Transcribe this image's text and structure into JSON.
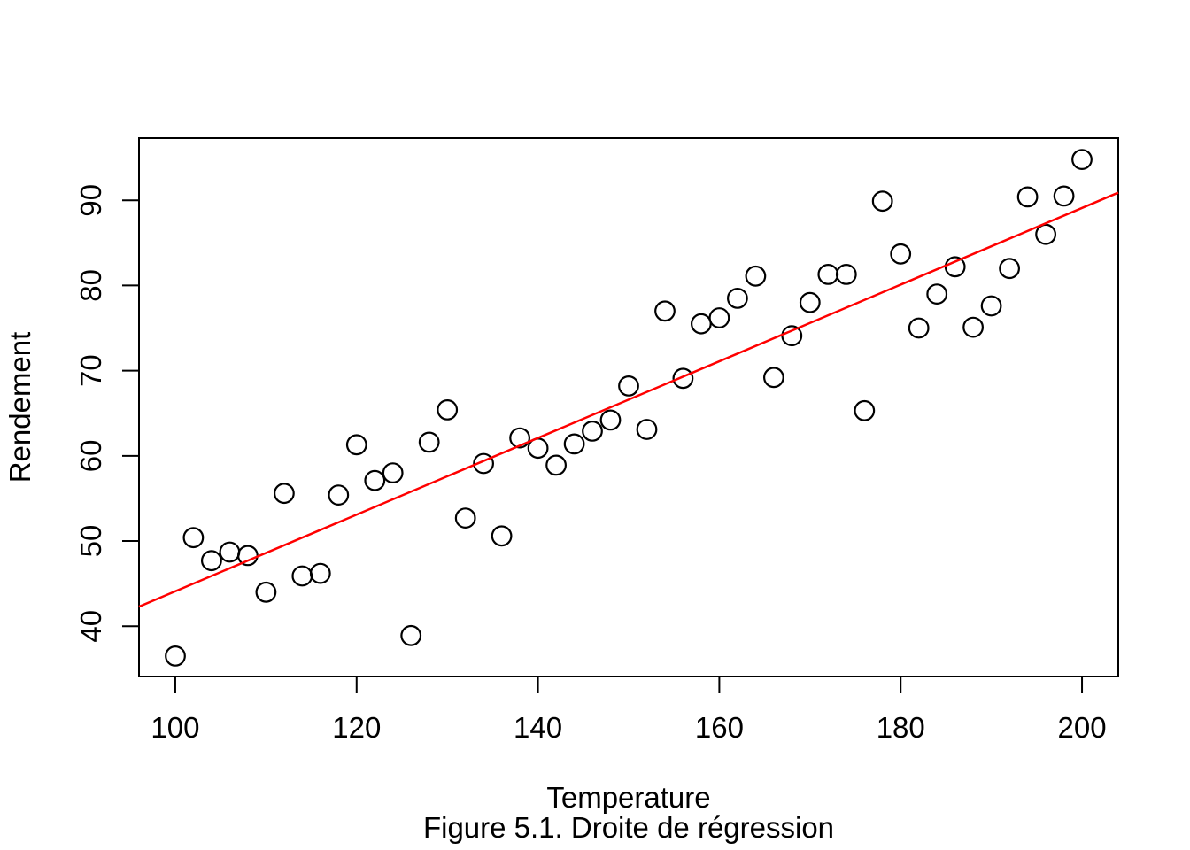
{
  "figure": {
    "xlabel": "Temperature",
    "ylabel": "Rendement",
    "caption": "Figure 5.1. Droite de régression"
  },
  "chart_data": {
    "type": "scatter",
    "title": "",
    "xlabel": "Temperature",
    "ylabel": "Rendement",
    "caption": "Figure 5.1. Droite de régression",
    "xlim": [
      96,
      204
    ],
    "ylim": [
      34.1,
      97.3
    ],
    "x_ticks": [
      100,
      120,
      140,
      160,
      180,
      200
    ],
    "y_ticks": [
      40,
      50,
      60,
      70,
      80,
      90
    ],
    "grid": false,
    "legend": false,
    "point_style": {
      "shape": "open-circle",
      "stroke_color": "#000000"
    },
    "points": [
      [
        100,
        36.5
      ],
      [
        102,
        50.4
      ],
      [
        104,
        47.7
      ],
      [
        106,
        48.7
      ],
      [
        108,
        48.3
      ],
      [
        110,
        44.0
      ],
      [
        112,
        55.6
      ],
      [
        114,
        45.9
      ],
      [
        116,
        46.2
      ],
      [
        118,
        55.4
      ],
      [
        120,
        61.3
      ],
      [
        122,
        57.1
      ],
      [
        124,
        58.0
      ],
      [
        126,
        38.9
      ],
      [
        128,
        61.6
      ],
      [
        130,
        65.4
      ],
      [
        132,
        52.7
      ],
      [
        134,
        59.1
      ],
      [
        136,
        50.6
      ],
      [
        138,
        62.1
      ],
      [
        140,
        60.9
      ],
      [
        142,
        58.9
      ],
      [
        144,
        61.4
      ],
      [
        146,
        62.9
      ],
      [
        148,
        64.2
      ],
      [
        150,
        68.2
      ],
      [
        152,
        63.1
      ],
      [
        154,
        77.0
      ],
      [
        156,
        69.1
      ],
      [
        158,
        75.5
      ],
      [
        160,
        76.2
      ],
      [
        162,
        78.5
      ],
      [
        164,
        81.1
      ],
      [
        166,
        69.2
      ],
      [
        168,
        74.1
      ],
      [
        170,
        78.0
      ],
      [
        172,
        81.3
      ],
      [
        174,
        81.3
      ],
      [
        176,
        65.3
      ],
      [
        178,
        89.9
      ],
      [
        180,
        83.7
      ],
      [
        182,
        75.0
      ],
      [
        184,
        79.0
      ],
      [
        186,
        82.2
      ],
      [
        188,
        75.1
      ],
      [
        190,
        77.6
      ],
      [
        192,
        82.0
      ],
      [
        194,
        90.4
      ],
      [
        196,
        86.0
      ],
      [
        198,
        90.5
      ],
      [
        200,
        94.8
      ]
    ],
    "regression_line": {
      "slope": 0.45,
      "intercept": -0.9,
      "x_start": 96,
      "x_end": 204,
      "color": "#FF0000"
    }
  }
}
